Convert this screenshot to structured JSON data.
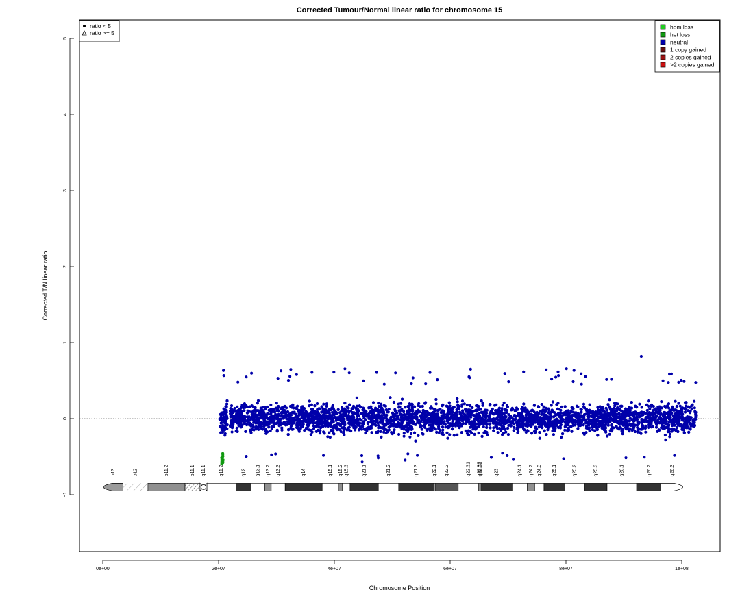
{
  "chart_data": {
    "type": "scatter",
    "title": "Corrected Tumour/Normal linear ratio for chromosome  15",
    "xlabel": "Chromosome Position",
    "ylabel": "Corrected T/N linear ratio",
    "xlim": [
      -4000000,
      106000000
    ],
    "ylim": [
      -1.8,
      5.3
    ],
    "x_ticks": [
      0,
      20000000,
      40000000,
      60000000,
      80000000,
      100000000
    ],
    "x_tick_labels": [
      "0e+00",
      "2e+07",
      "4e+07",
      "6e+07",
      "8e+07",
      "1e+08"
    ],
    "y_ticks": [
      -1,
      0,
      1,
      2,
      3,
      4,
      5
    ],
    "y_tick_labels": [
      "−1",
      "0",
      "1",
      "2",
      "3",
      "4",
      "5"
    ],
    "reference_line": {
      "y": 0,
      "style": "dotted"
    },
    "shape_legend": [
      {
        "symbol": "●",
        "label": "ratio < 5"
      },
      {
        "symbol": "△",
        "label": "ratio >= 5"
      }
    ],
    "color_legend": [
      {
        "label": "hom loss",
        "color": "#22cc22"
      },
      {
        "label": "het loss",
        "color": "#119911"
      },
      {
        "label": "neutral",
        "color": "#0000aa"
      },
      {
        "label": "1 copy gained",
        "color": "#661111"
      },
      {
        "label": "2 copies gained",
        "color": "#991111"
      },
      {
        "label": ">2 copies gained",
        "color": "#cc1111"
      }
    ],
    "series": [
      {
        "name": "neutral",
        "color": "#0000aa",
        "x_range": [
          20200000,
          102500000
        ],
        "gaps": [
          [
            21500000,
            22000000
          ],
          [
            82800000,
            83000000
          ]
        ],
        "typical_y_range": [
          -0.45,
          0.45
        ],
        "min_y": -0.57,
        "max_y": 0.82
      },
      {
        "name": "het loss",
        "color": "#119911",
        "x_range": [
          20500000,
          20800000
        ],
        "typical_y_range": [
          -0.6,
          -0.45
        ]
      }
    ],
    "ideogram": {
      "y": -0.9,
      "bands": [
        {
          "name": "p13",
          "start": 0,
          "end": 3500000,
          "stain": "stalk"
        },
        {
          "name": "p12",
          "start": 3500000,
          "end": 7800000,
          "stain": "gvar"
        },
        {
          "name": "p11.2",
          "start": 7800000,
          "end": 14200000,
          "stain": "gpos50"
        },
        {
          "name": "p11.1",
          "start": 14200000,
          "end": 16800000,
          "stain": "stripe"
        },
        {
          "name": "q11.1",
          "start": 16800000,
          "end": 18000000,
          "stain": "acen"
        },
        {
          "name": "q11.2",
          "start": 18000000,
          "end": 23000000,
          "stain": "gneg"
        },
        {
          "name": "q12",
          "start": 23000000,
          "end": 25600000,
          "stain": "gpos100"
        },
        {
          "name": "q13.1",
          "start": 25600000,
          "end": 28000000,
          "stain": "gneg"
        },
        {
          "name": "q13.2",
          "start": 28000000,
          "end": 29100000,
          "stain": "gpos50"
        },
        {
          "name": "q13.3",
          "start": 29100000,
          "end": 31500000,
          "stain": "gneg"
        },
        {
          "name": "q14",
          "start": 31500000,
          "end": 37900000,
          "stain": "gpos100"
        },
        {
          "name": "q15.1",
          "start": 37900000,
          "end": 40700000,
          "stain": "gneg"
        },
        {
          "name": "q15.2",
          "start": 40700000,
          "end": 41400000,
          "stain": "gpos50"
        },
        {
          "name": "q15.3",
          "start": 41400000,
          "end": 42700000,
          "stain": "gneg"
        },
        {
          "name": "q21.1",
          "start": 42700000,
          "end": 47600000,
          "stain": "gpos100"
        },
        {
          "name": "q21.2",
          "start": 47600000,
          "end": 51100000,
          "stain": "gneg"
        },
        {
          "name": "q21.3",
          "start": 51100000,
          "end": 57100000,
          "stain": "gpos100"
        },
        {
          "name": "q22.1",
          "start": 57100000,
          "end": 57400000,
          "stain": "gneg"
        },
        {
          "name": "q22.2",
          "start": 57400000,
          "end": 61400000,
          "stain": "gpos75"
        },
        {
          "name": "q22.31",
          "start": 61400000,
          "end": 64900000,
          "stain": "gneg"
        },
        {
          "name": "q22.32",
          "start": 64900000,
          "end": 65100000,
          "stain": "gpos25"
        },
        {
          "name": "q22.33",
          "start": 65100000,
          "end": 65300000,
          "stain": "gneg"
        },
        {
          "name": "q23",
          "start": 65300000,
          "end": 70700000,
          "stain": "gpos100"
        },
        {
          "name": "q24.1",
          "start": 70700000,
          "end": 73300000,
          "stain": "gneg"
        },
        {
          "name": "q24.2",
          "start": 73300000,
          "end": 74600000,
          "stain": "gpos50"
        },
        {
          "name": "q24.3",
          "start": 74600000,
          "end": 76200000,
          "stain": "gneg"
        },
        {
          "name": "q25.1",
          "start": 76200000,
          "end": 79800000,
          "stain": "gpos100"
        },
        {
          "name": "q25.2",
          "start": 79800000,
          "end": 83200000,
          "stain": "gneg"
        },
        {
          "name": "q25.3",
          "start": 83200000,
          "end": 87100000,
          "stain": "gpos100"
        },
        {
          "name": "q26.1",
          "start": 87100000,
          "end": 92200000,
          "stain": "gneg"
        },
        {
          "name": "q26.2",
          "start": 92200000,
          "end": 96400000,
          "stain": "gpos100"
        },
        {
          "name": "q26.3",
          "start": 96400000,
          "end": 100300000,
          "stain": "gneg"
        }
      ]
    }
  }
}
